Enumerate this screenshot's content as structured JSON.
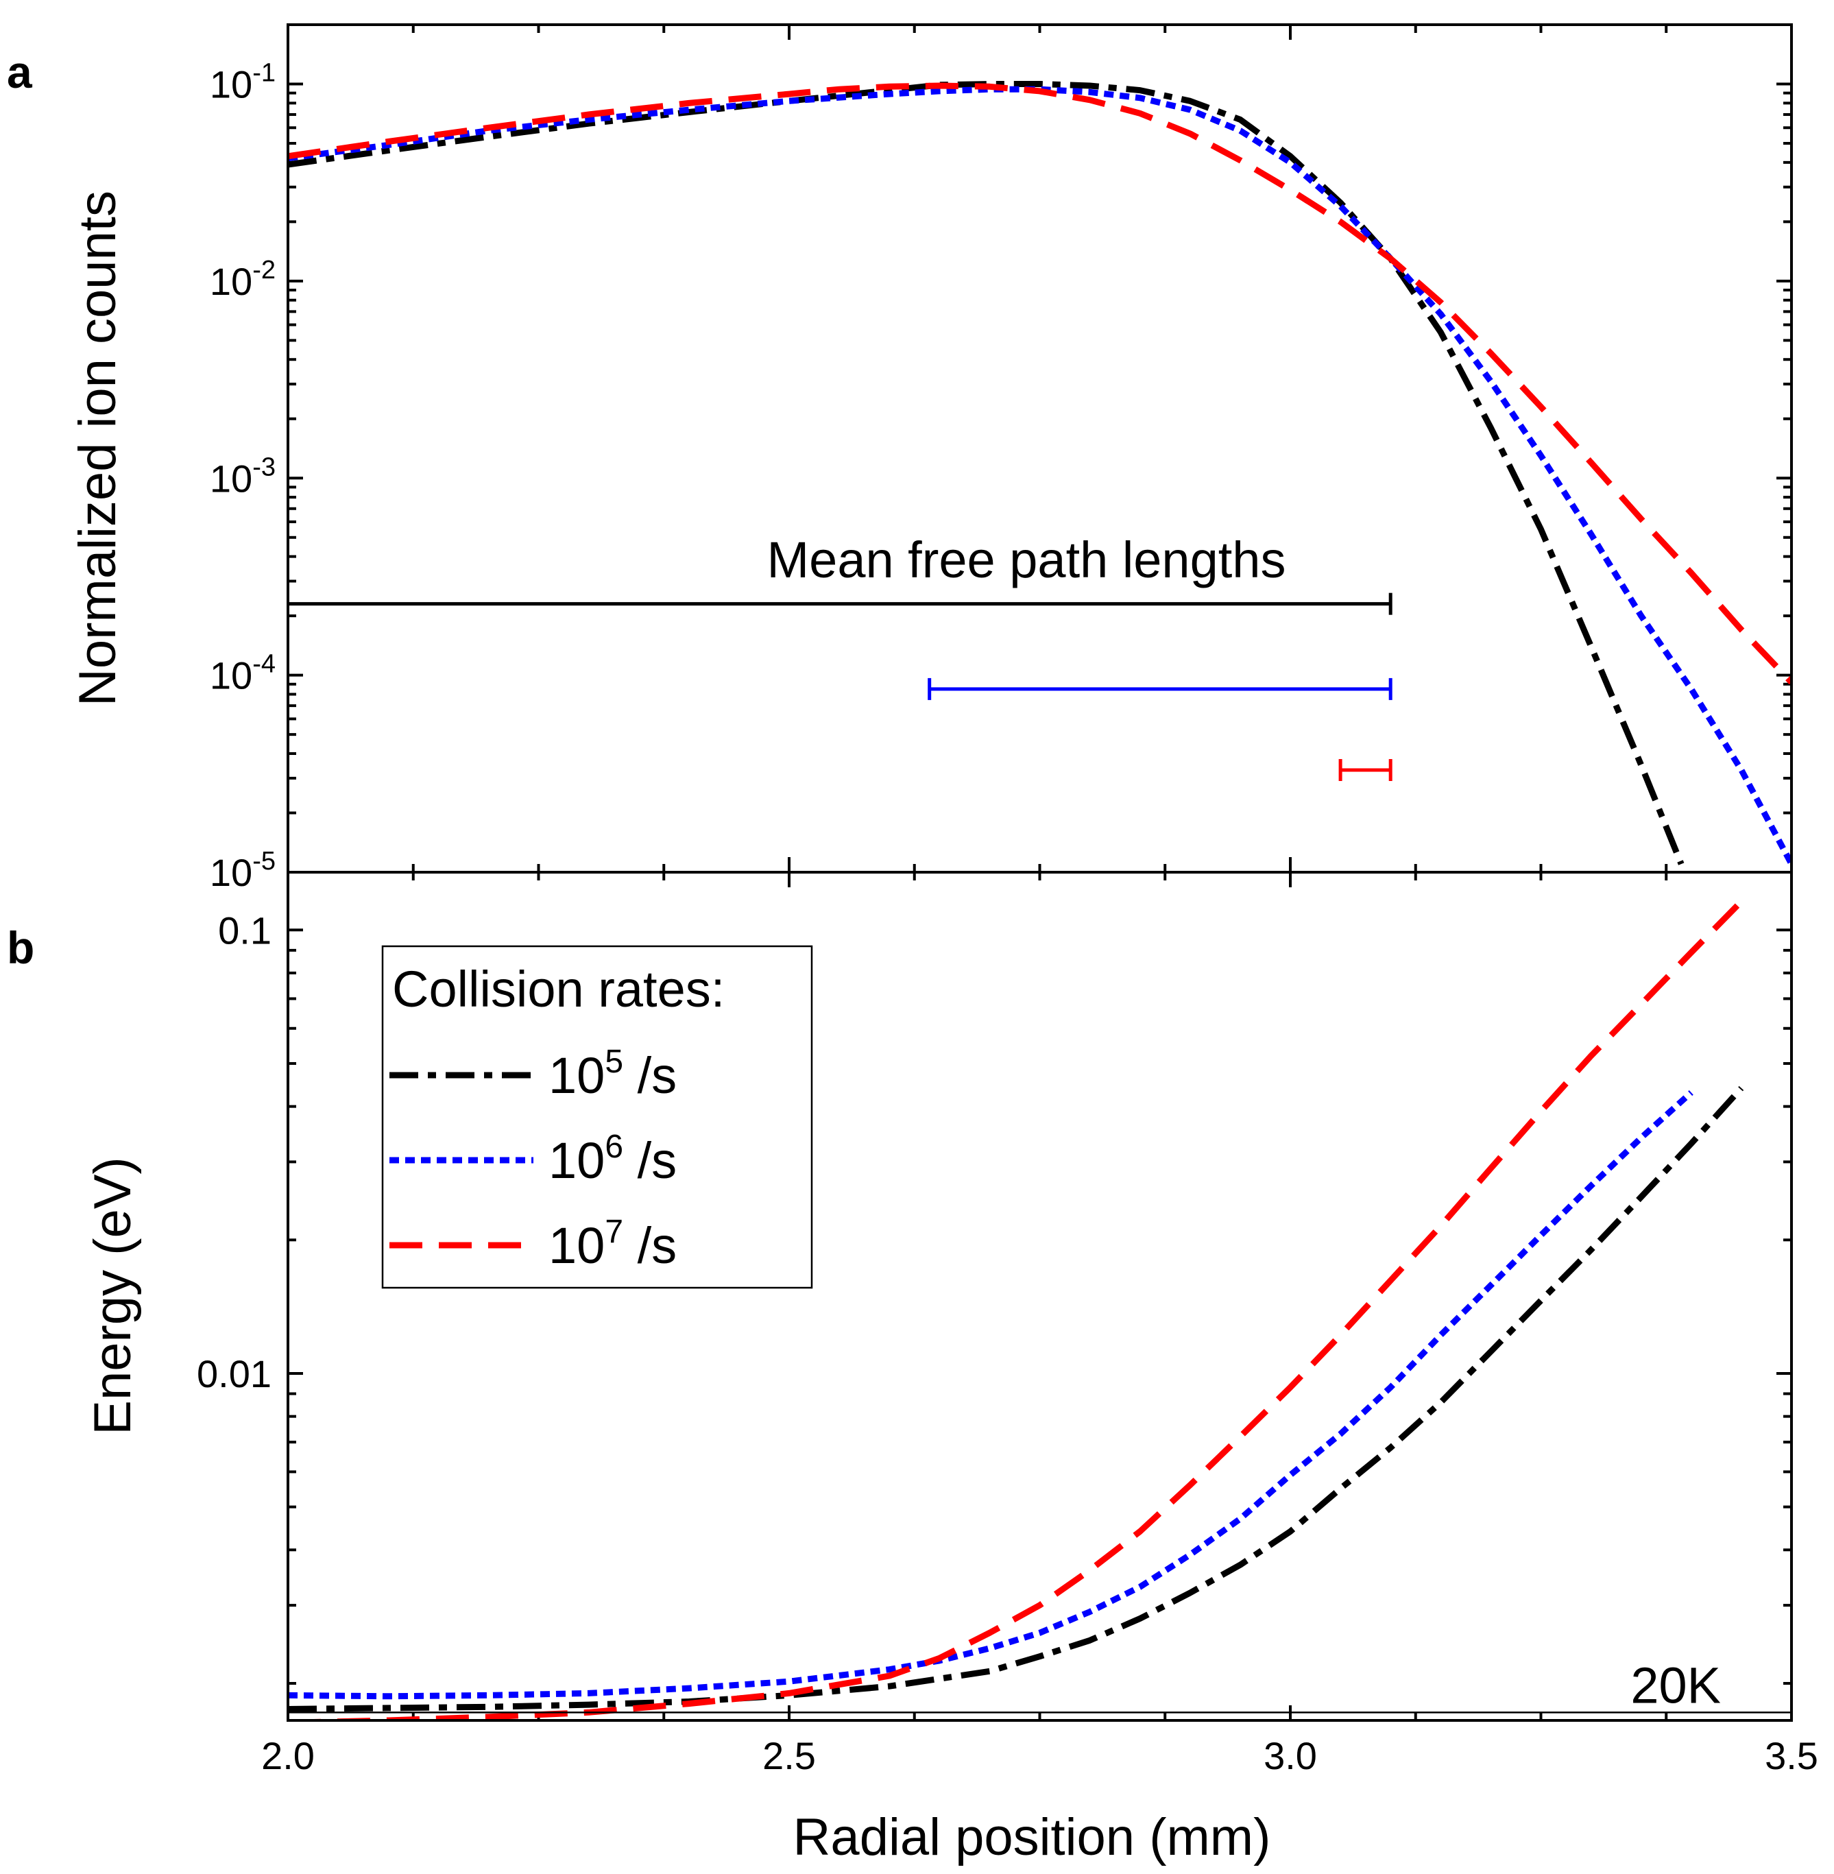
{
  "chart_data": [
    {
      "panel_letter": "a",
      "type": "line",
      "scale_y": "log",
      "ylabel": "Normalized ion counts",
      "xlim": [
        2.0,
        3.5
      ],
      "ylim": [
        1e-05,
        0.2
      ],
      "y_ticks": [
        {
          "value": 0.1,
          "base": "10",
          "exp": "-1"
        },
        {
          "value": 0.01,
          "base": "10",
          "exp": "-2"
        },
        {
          "value": 0.001,
          "base": "10",
          "exp": "-3"
        },
        {
          "value": 0.0001,
          "base": "10",
          "exp": "-4"
        },
        {
          "value": 1e-05,
          "base": "10",
          "exp": "-5"
        }
      ],
      "series": [
        {
          "name": "10^5 /s",
          "color": "#000000",
          "dash": "dashdot",
          "x": [
            2.0,
            2.1,
            2.2,
            2.3,
            2.4,
            2.5,
            2.6,
            2.65,
            2.7,
            2.75,
            2.8,
            2.85,
            2.9,
            2.95,
            3.0,
            3.05,
            3.1,
            3.15,
            3.2,
            3.25,
            3.3,
            3.35,
            3.39
          ],
          "values": [
            0.039,
            0.046,
            0.054,
            0.063,
            0.072,
            0.082,
            0.093,
            0.099,
            0.1,
            0.1,
            0.098,
            0.093,
            0.082,
            0.066,
            0.043,
            0.025,
            0.013,
            0.0055,
            0.0018,
            0.00055,
            0.00014,
            3.5e-05,
            1.1e-05
          ]
        },
        {
          "name": "10^6 /s",
          "color": "#0000ff",
          "dash": "dotted",
          "x": [
            2.0,
            2.1,
            2.2,
            2.3,
            2.4,
            2.5,
            2.6,
            2.65,
            2.7,
            2.75,
            2.8,
            2.85,
            2.9,
            2.95,
            3.0,
            3.05,
            3.1,
            3.15,
            3.2,
            3.25,
            3.3,
            3.35,
            3.4,
            3.45,
            3.5
          ],
          "values": [
            0.042,
            0.049,
            0.058,
            0.066,
            0.074,
            0.082,
            0.089,
            0.092,
            0.094,
            0.094,
            0.091,
            0.085,
            0.074,
            0.058,
            0.04,
            0.024,
            0.013,
            0.0068,
            0.0031,
            0.0013,
            0.00052,
            0.0002,
            8.5e-05,
            3.3e-05,
            1.1e-05
          ]
        },
        {
          "name": "10^7 /s",
          "color": "#ff0000",
          "dash": "dashed",
          "x": [
            2.0,
            2.1,
            2.2,
            2.3,
            2.4,
            2.5,
            2.55,
            2.6,
            2.65,
            2.7,
            2.75,
            2.8,
            2.85,
            2.9,
            2.95,
            3.0,
            3.05,
            3.1,
            3.15,
            3.2,
            3.25,
            3.3,
            3.35,
            3.4,
            3.45,
            3.5
          ],
          "values": [
            0.043,
            0.051,
            0.06,
            0.07,
            0.08,
            0.089,
            0.094,
            0.097,
            0.098,
            0.097,
            0.092,
            0.083,
            0.071,
            0.056,
            0.041,
            0.029,
            0.02,
            0.013,
            0.0078,
            0.0043,
            0.0023,
            0.0012,
            0.00062,
            0.00033,
            0.00017,
            9.2e-05
          ]
        }
      ],
      "mean_free_path": {
        "label": "Mean free path lengths",
        "bars": [
          {
            "color": "#000000",
            "x_start": 2.0,
            "x_end": 3.1,
            "y": 0.00023
          },
          {
            "color": "#0000ff",
            "x_start": 2.64,
            "x_end": 3.1,
            "y": 8.5e-05
          },
          {
            "color": "#ff0000",
            "x_start": 3.05,
            "x_end": 3.1,
            "y": 3.3e-05
          }
        ]
      }
    },
    {
      "panel_letter": "b",
      "type": "line",
      "scale_y": "log",
      "ylabel": "Energy (eV)",
      "xlabel": "Radial position (mm)",
      "xlim": [
        2.0,
        3.5
      ],
      "ylim": [
        0.00165,
        0.135
      ],
      "x_ticks": [
        {
          "value": 2.0,
          "label": "2.0"
        },
        {
          "value": 2.5,
          "label": "2.5"
        },
        {
          "value": 3.0,
          "label": "3.0"
        },
        {
          "value": 3.5,
          "label": "3.5"
        }
      ],
      "y_ticks": [
        {
          "value": 0.1,
          "label": "0.1"
        },
        {
          "value": 0.01,
          "label": "0.01"
        }
      ],
      "reference_line": {
        "value": 0.00172,
        "label": "20K"
      },
      "legend": {
        "title": "Collision rates:",
        "position": "top-left",
        "entries": [
          {
            "base": "10",
            "exp": "5",
            "unit": " /s"
          },
          {
            "base": "10",
            "exp": "6",
            "unit": " /s"
          },
          {
            "base": "10",
            "exp": "7",
            "unit": " /s"
          }
        ]
      },
      "series": [
        {
          "name": "10^5 /s",
          "color": "#000000",
          "dash": "dashdot",
          "x": [
            2.0,
            2.1,
            2.2,
            2.3,
            2.4,
            2.5,
            2.6,
            2.7,
            2.75,
            2.8,
            2.85,
            2.9,
            2.95,
            3.0,
            3.05,
            3.1,
            3.15,
            3.2,
            3.25,
            3.3,
            3.35,
            3.4,
            3.45
          ],
          "values": [
            0.00175,
            0.00176,
            0.00177,
            0.00179,
            0.00182,
            0.00188,
            0.00197,
            0.00213,
            0.0023,
            0.0025,
            0.0028,
            0.0032,
            0.0037,
            0.0044,
            0.0055,
            0.0068,
            0.0086,
            0.0112,
            0.0146,
            0.019,
            0.025,
            0.033,
            0.044
          ]
        },
        {
          "name": "10^6 /s",
          "color": "#0000ff",
          "dash": "dotted",
          "x": [
            2.0,
            2.1,
            2.2,
            2.3,
            2.4,
            2.5,
            2.6,
            2.65,
            2.7,
            2.75,
            2.8,
            2.85,
            2.9,
            2.95,
            3.0,
            3.05,
            3.1,
            3.15,
            3.2,
            3.25,
            3.3,
            3.35,
            3.4
          ],
          "values": [
            0.00188,
            0.00187,
            0.00188,
            0.0019,
            0.00195,
            0.00202,
            0.00215,
            0.00225,
            0.0024,
            0.0026,
            0.0029,
            0.0033,
            0.0039,
            0.0047,
            0.0059,
            0.0073,
            0.0093,
            0.0122,
            0.0158,
            0.0205,
            0.0265,
            0.034,
            0.043
          ]
        },
        {
          "name": "10^7 /s",
          "color": "#ff0000",
          "dash": "dashed",
          "x": [
            2.0,
            2.1,
            2.2,
            2.3,
            2.4,
            2.5,
            2.6,
            2.65,
            2.7,
            2.75,
            2.8,
            2.85,
            2.9,
            2.95,
            3.0,
            3.05,
            3.1,
            3.15,
            3.2,
            3.25,
            3.3,
            3.35,
            3.4,
            3.45
          ],
          "values": [
            0.00163,
            0.00165,
            0.00168,
            0.00172,
            0.0018,
            0.0019,
            0.00208,
            0.00228,
            0.0026,
            0.003,
            0.0036,
            0.0044,
            0.0056,
            0.0072,
            0.0093,
            0.0122,
            0.0162,
            0.0215,
            0.029,
            0.039,
            0.052,
            0.068,
            0.089,
            0.116
          ]
        }
      ]
    }
  ]
}
